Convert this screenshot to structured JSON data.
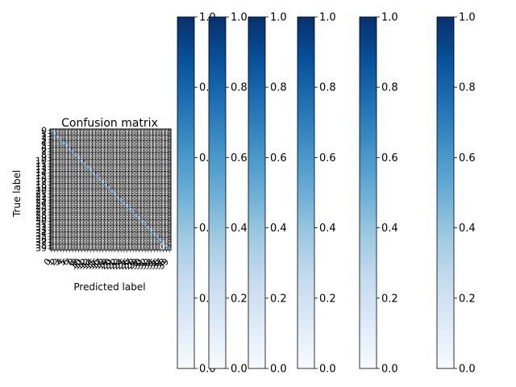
{
  "chart_data": {
    "type": "heatmap",
    "title": "Confusion matrix",
    "xlabel": "Predicted label",
    "ylabel": "True label",
    "num_classes": 40,
    "y_tick_labels": [
      "0",
      "1",
      "2",
      "3",
      "4",
      "5",
      "6",
      "7",
      "8",
      "9",
      "10",
      "11",
      "12",
      "13",
      "14",
      "15",
      "16",
      "17",
      "18",
      "19",
      "20",
      "21",
      "22",
      "23",
      "24",
      "25",
      "26",
      "27",
      "28",
      "29",
      "30",
      "31",
      "32",
      "33",
      "34",
      "35",
      "36",
      "37",
      "38",
      "39"
    ],
    "x_tick_labels": [
      "0",
      "1",
      "2",
      "3",
      "4",
      "5",
      "6",
      "7",
      "8",
      "9",
      "10",
      "11",
      "12",
      "13",
      "14",
      "15",
      "16",
      "17",
      "18",
      "19",
      "20",
      "21",
      "22",
      "23",
      "24",
      "25",
      "26",
      "27",
      "28",
      "29",
      "30",
      "31",
      "32",
      "33",
      "34",
      "35",
      "36",
      "37",
      "38",
      "39"
    ],
    "diagonal_values": [
      0.96,
      0.95,
      0.98,
      0.97,
      0.94,
      0.96,
      0.97,
      0.95,
      0.96,
      0.98,
      0.97,
      0.95,
      0.96,
      0.94,
      0.97,
      0.98,
      0.95,
      0.96,
      0.97,
      0.95,
      0.96,
      0.94,
      0.97,
      0.96,
      0.95,
      0.98,
      0.96,
      0.97,
      0.95,
      0.94,
      0.96,
      0.97,
      0.95,
      0.96,
      0.94,
      0.97,
      0.95,
      0.96,
      0.93,
      0.76
    ],
    "off_diagonal_value": 0.0,
    "colormap": "Blues",
    "colorbar": {
      "count": 6,
      "range": [
        0.0,
        1.0
      ],
      "ticks": [
        "0.0",
        "0.2",
        "0.4",
        "0.6",
        "0.8",
        "1.0"
      ]
    },
    "grid": false
  },
  "colors": {
    "cmap_low": "#f7fbff",
    "cmap_high": "#08306b",
    "cell_text": "#ffffff",
    "matrix_bg": "#000000"
  }
}
